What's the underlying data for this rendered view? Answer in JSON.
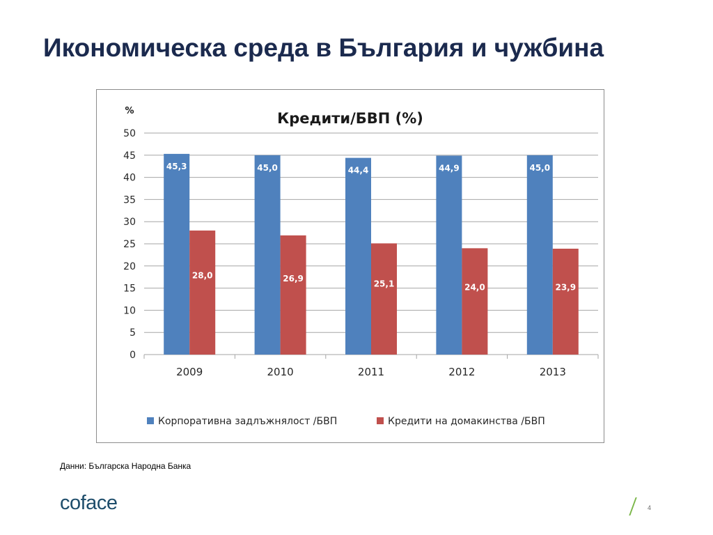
{
  "slide": {
    "title": "Икономическа среда в България и чужбина",
    "source": "Данни: Българска Народна Банка",
    "logo": "coface",
    "page_number": "4",
    "colors": {
      "title": "#1b2a4e",
      "logo": "#1e4d6b",
      "accent": "#7ab648"
    }
  },
  "chart_data": {
    "type": "bar",
    "title": "Кредити/БВП (%)",
    "ylabel": "%",
    "xlabel": "",
    "ylim": [
      0,
      50
    ],
    "yticks": [
      0,
      5,
      10,
      15,
      20,
      25,
      30,
      35,
      40,
      45,
      50
    ],
    "grid": true,
    "legend_position": "bottom",
    "categories": [
      "2009",
      "2010",
      "2011",
      "2012",
      "2013"
    ],
    "series": [
      {
        "name": "Корпоративна задлъжнялост /БВП",
        "color": "#4f81bd",
        "values": [
          45.3,
          45.0,
          44.4,
          44.9,
          45.0
        ],
        "labels": [
          "45,3",
          "45,0",
          "44,4",
          "44,9",
          "45,0"
        ]
      },
      {
        "name": "Кредити на домакинства /БВП",
        "color": "#c0504d",
        "values": [
          28.0,
          26.9,
          25.1,
          24.0,
          23.9
        ],
        "labels": [
          "28,0",
          "26,9",
          "25,1",
          "24,0",
          "23,9"
        ]
      }
    ]
  }
}
